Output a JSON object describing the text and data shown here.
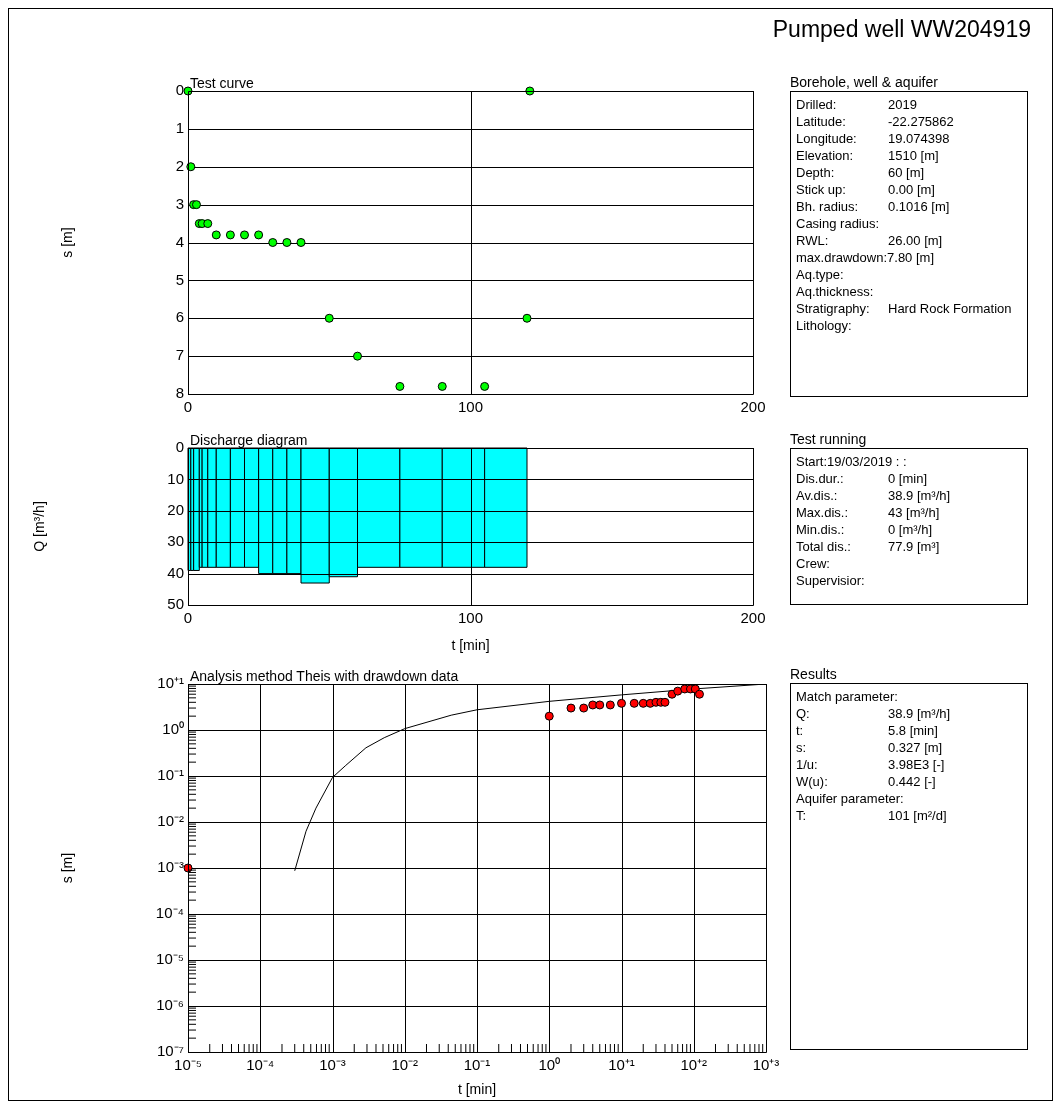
{
  "chart_data": [
    {
      "type": "other",
      "title": "Pumped well WW204919"
    },
    {
      "type": "scatter",
      "title": "Test curve",
      "ylabel": "s [m]",
      "x": [
        0,
        121,
        1,
        2,
        3,
        4,
        5,
        7,
        10,
        15,
        20,
        25,
        30,
        35,
        40,
        50,
        60,
        75,
        90,
        105,
        120
      ],
      "values": [
        0,
        0,
        2,
        3,
        3,
        3.5,
        3.5,
        3.5,
        3.8,
        3.8,
        3.8,
        3.8,
        4,
        4,
        4,
        6,
        7,
        7.8,
        7.8,
        7.8,
        6
      ],
      "color": "#00ff00",
      "marker": "circle",
      "xlim": [
        0,
        200
      ],
      "xticks": [
        0,
        100,
        200
      ],
      "ylim": [
        8,
        0
      ],
      "yticks": [
        0,
        1,
        2,
        3,
        4,
        5,
        6,
        7,
        8
      ],
      "grid": true
    },
    {
      "type": "other",
      "title": "Borehole, well & aquifer",
      "annotations": [
        "Drilled:\t2019",
        "Latitude:\t-22.275862",
        "Longitude:\t19.074398",
        "Elevation:\t1510 [m]",
        "Depth:\t60 [m]",
        "Stick up:\t0.00 [m]",
        "Bh. radius:\t0.1016 [m]",
        "Casing radius:",
        "RWL:\t26.00 [m]",
        "max.drawdown:7.80 [m]",
        "Aq.type:",
        "Aq.thickness:",
        "Stratigraphy:\tHard Rock Formation",
        "Lithology:"
      ]
    },
    {
      "type": "histogram",
      "title": "Discharge diagram",
      "xlabel": "t [min]",
      "ylabel": "Q [m³/h]",
      "bins": [
        0,
        1,
        2,
        4,
        5,
        7,
        10,
        15,
        20,
        25,
        30,
        35,
        40,
        50,
        60,
        75,
        90,
        105,
        120
      ],
      "values": [
        39,
        39,
        39,
        38,
        38,
        38,
        38,
        38,
        38,
        40,
        40,
        40,
        43,
        41,
        38,
        38,
        38,
        38
      ],
      "color": "#00ffff",
      "xlim": [
        0,
        200
      ],
      "xticks": [
        0,
        100,
        200
      ],
      "ylim": [
        50,
        0
      ],
      "yticks": [
        0,
        10,
        20,
        30,
        40,
        50
      ],
      "grid": true
    },
    {
      "type": "other",
      "title": "Test running",
      "annotations": [
        "Start:19/03/2019   :  :",
        "Dis.dur.:\t0 [min]",
        "Av.dis.:\t38.9 [m³/h]",
        "Max.dis.:\t43 [m³/h]",
        "Min.dis.:\t0 [m³/h]",
        "Total dis.:\t77.9 [m³]",
        "Crew:",
        "Supervisior:"
      ]
    },
    {
      "type": "scatter",
      "title": "Analysis method Theis with drawdown data",
      "xlabel": "t [min]",
      "ylabel": "s [m]",
      "log": "xy",
      "marker": "circle",
      "series": [
        {
          "type": "scatter",
          "color": "#ff0000",
          "x": [
            1e-05,
            1,
            2,
            3,
            4,
            5,
            7,
            10,
            15,
            20,
            25,
            30,
            35,
            40,
            50,
            60,
            75,
            90,
            105,
            120
          ],
          "values": [
            0.001,
            2,
            3,
            3,
            3.5,
            3.5,
            3.5,
            3.8,
            3.8,
            3.8,
            3.8,
            4,
            4,
            4,
            6,
            7,
            7.8,
            7.8,
            7.8,
            6
          ]
        },
        {
          "type": "line",
          "color": "#000000",
          "marker": "none",
          "x": [
            0.0003,
            0.00043,
            0.00059,
            0.001,
            0.0015,
            0.0029,
            0.0052,
            0.01,
            0.044,
            0.1,
            1,
            10,
            100,
            1000
          ],
          "values": [
            0.00087,
            0.0063,
            0.02,
            0.093,
            0.166,
            0.41,
            0.68,
            1.07,
            2.1,
            2.75,
            4.2,
            5.8,
            7.8,
            10
          ]
        }
      ],
      "xlim": [
        1e-05,
        1000
      ],
      "ylim": [
        1e-07,
        10
      ],
      "grid": true,
      "xticks": [
        {
          "value": 1e-05,
          "label": "10⁻⁵"
        },
        {
          "value": 0.0001,
          "label": "10⁻⁴"
        },
        {
          "value": 0.001,
          "label": "10⁻³"
        },
        {
          "value": 0.01,
          "label": "10⁻²"
        },
        {
          "value": 0.1,
          "label": "10⁻¹"
        },
        {
          "value": 1,
          "label": "10⁰"
        },
        {
          "value": 10,
          "label": "10⁺¹"
        },
        {
          "value": 100,
          "label": "10⁺²"
        },
        {
          "value": 1000,
          "label": "10⁺³"
        },
        {
          "value": 2e-05,
          "label": null
        },
        {
          "value": 3e-05,
          "label": null
        },
        {
          "value": 4e-05,
          "label": null
        },
        {
          "value": 5e-05,
          "label": null
        },
        {
          "value": 6e-05,
          "label": null
        },
        {
          "value": 7e-05,
          "label": null
        },
        {
          "value": 8e-05,
          "label": null
        },
        {
          "value": 9e-05,
          "label": null
        },
        {
          "value": 0.0002,
          "label": null
        },
        {
          "value": 0.0003,
          "label": null
        },
        {
          "value": 0.0004,
          "label": null
        },
        {
          "value": 0.0005,
          "label": null
        },
        {
          "value": 0.0006,
          "label": null
        },
        {
          "value": 0.0007,
          "label": null
        },
        {
          "value": 0.0008,
          "label": null
        },
        {
          "value": 0.0009,
          "label": null
        },
        {
          "value": 0.002,
          "label": null
        },
        {
          "value": 0.003,
          "label": null
        },
        {
          "value": 0.004,
          "label": null
        },
        {
          "value": 0.005,
          "label": null
        },
        {
          "value": 0.006,
          "label": null
        },
        {
          "value": 0.007,
          "label": null
        },
        {
          "value": 0.008,
          "label": null
        },
        {
          "value": 0.009,
          "label": null
        },
        {
          "value": 0.02,
          "label": null
        },
        {
          "value": 0.03,
          "label": null
        },
        {
          "value": 0.04,
          "label": null
        },
        {
          "value": 0.05,
          "label": null
        },
        {
          "value": 0.06,
          "label": null
        },
        {
          "value": 0.07,
          "label": null
        },
        {
          "value": 0.08,
          "label": null
        },
        {
          "value": 0.09,
          "label": null
        },
        {
          "value": 0.2,
          "label": null
        },
        {
          "value": 0.3,
          "label": null
        },
        {
          "value": 0.4,
          "label": null
        },
        {
          "value": 0.5,
          "label": null
        },
        {
          "value": 0.6,
          "label": null
        },
        {
          "value": 0.7,
          "label": null
        },
        {
          "value": 0.8,
          "label": null
        },
        {
          "value": 0.9,
          "label": null
        },
        {
          "value": 2,
          "label": null
        },
        {
          "value": 3,
          "label": null
        },
        {
          "value": 4,
          "label": null
        },
        {
          "value": 5,
          "label": null
        },
        {
          "value": 6,
          "label": null
        },
        {
          "value": 7,
          "label": null
        },
        {
          "value": 8,
          "label": null
        },
        {
          "value": 9,
          "label": null
        },
        {
          "value": 20,
          "label": null
        },
        {
          "value": 30,
          "label": null
        },
        {
          "value": 40,
          "label": null
        },
        {
          "value": 50,
          "label": null
        },
        {
          "value": 60,
          "label": null
        },
        {
          "value": 70,
          "label": null
        },
        {
          "value": 80,
          "label": null
        },
        {
          "value": 90,
          "label": null
        },
        {
          "value": 200,
          "label": null
        },
        {
          "value": 300,
          "label": null
        },
        {
          "value": 400,
          "label": null
        },
        {
          "value": 500,
          "label": null
        },
        {
          "value": 600,
          "label": null
        },
        {
          "value": 700,
          "label": null
        },
        {
          "value": 800,
          "label": null
        },
        {
          "value": 900,
          "label": null
        }
      ],
      "yticks": [
        {
          "value": 1e-07,
          "label": "10⁻⁷"
        },
        {
          "value": 1e-06,
          "label": "10⁻⁶"
        },
        {
          "value": 1e-05,
          "label": "10⁻⁵"
        },
        {
          "value": 0.0001,
          "label": "10⁻⁴"
        },
        {
          "value": 0.001,
          "label": "10⁻³"
        },
        {
          "value": 0.01,
          "label": "10⁻²"
        },
        {
          "value": 0.1,
          "label": "10⁻¹"
        },
        {
          "value": 1,
          "label": "10⁰"
        },
        {
          "value": 10,
          "label": "10⁺¹"
        },
        {
          "value": 2e-07,
          "label": null
        },
        {
          "value": 3e-07,
          "label": null
        },
        {
          "value": 4e-07,
          "label": null
        },
        {
          "value": 5e-07,
          "label": null
        },
        {
          "value": 6e-07,
          "label": null
        },
        {
          "value": 7e-07,
          "label": null
        },
        {
          "value": 8e-07,
          "label": null
        },
        {
          "value": 9e-07,
          "label": null
        },
        {
          "value": 2e-06,
          "label": null
        },
        {
          "value": 3e-06,
          "label": null
        },
        {
          "value": 4e-06,
          "label": null
        },
        {
          "value": 5e-06,
          "label": null
        },
        {
          "value": 6e-06,
          "label": null
        },
        {
          "value": 7e-06,
          "label": null
        },
        {
          "value": 8e-06,
          "label": null
        },
        {
          "value": 9e-06,
          "label": null
        },
        {
          "value": 2e-05,
          "label": null
        },
        {
          "value": 3e-05,
          "label": null
        },
        {
          "value": 4e-05,
          "label": null
        },
        {
          "value": 5e-05,
          "label": null
        },
        {
          "value": 6e-05,
          "label": null
        },
        {
          "value": 7e-05,
          "label": null
        },
        {
          "value": 8e-05,
          "label": null
        },
        {
          "value": 9e-05,
          "label": null
        },
        {
          "value": 0.0002,
          "label": null
        },
        {
          "value": 0.0003,
          "label": null
        },
        {
          "value": 0.0004,
          "label": null
        },
        {
          "value": 0.0005,
          "label": null
        },
        {
          "value": 0.0006,
          "label": null
        },
        {
          "value": 0.0007,
          "label": null
        },
        {
          "value": 0.0008,
          "label": null
        },
        {
          "value": 0.0009,
          "label": null
        },
        {
          "value": 0.002,
          "label": null
        },
        {
          "value": 0.003,
          "label": null
        },
        {
          "value": 0.004,
          "label": null
        },
        {
          "value": 0.005,
          "label": null
        },
        {
          "value": 0.006,
          "label": null
        },
        {
          "value": 0.007,
          "label": null
        },
        {
          "value": 0.008,
          "label": null
        },
        {
          "value": 0.009,
          "label": null
        },
        {
          "value": 0.02,
          "label": null
        },
        {
          "value": 0.03,
          "label": null
        },
        {
          "value": 0.04,
          "label": null
        },
        {
          "value": 0.05,
          "label": null
        },
        {
          "value": 0.06,
          "label": null
        },
        {
          "value": 0.07,
          "label": null
        },
        {
          "value": 0.08,
          "label": null
        },
        {
          "value": 0.09,
          "label": null
        },
        {
          "value": 0.2,
          "label": null
        },
        {
          "value": 0.3,
          "label": null
        },
        {
          "value": 0.4,
          "label": null
        },
        {
          "value": 0.5,
          "label": null
        },
        {
          "value": 0.6,
          "label": null
        },
        {
          "value": 0.7,
          "label": null
        },
        {
          "value": 0.8,
          "label": null
        },
        {
          "value": 0.9,
          "label": null
        },
        {
          "value": 2,
          "label": null
        },
        {
          "value": 3,
          "label": null
        },
        {
          "value": 4,
          "label": null
        },
        {
          "value": 5,
          "label": null
        },
        {
          "value": 6,
          "label": null
        },
        {
          "value": 7,
          "label": null
        },
        {
          "value": 8,
          "label": null
        },
        {
          "value": 9,
          "label": null
        }
      ]
    },
    {
      "type": "other",
      "title": "Results",
      "annotations": [
        "Match parameter:",
        "Q:\t38.9 [m³/h]",
        "t:\t5.8 [min]",
        "s:\t0.327 [m]",
        "1/u:\t3.98E3 [-]",
        "W(u):\t0.442 [-]",
        "Aquifer parameter:",
        "T:\t101 [m²/d]"
      ]
    }
  ]
}
